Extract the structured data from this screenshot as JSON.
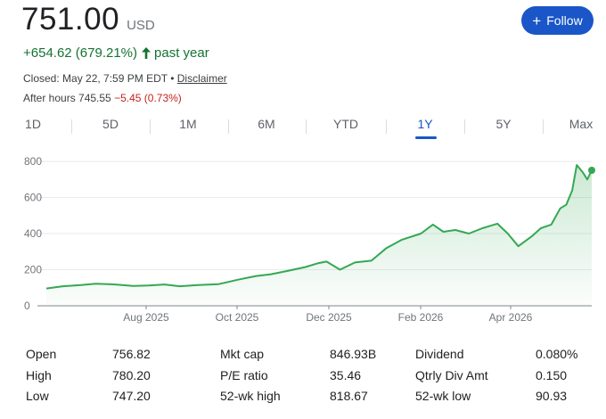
{
  "quote": {
    "price": "751.00",
    "currency": "USD",
    "change": "+654.62 (679.21%)",
    "change_period": "past year",
    "closed_text": "Closed: May 22, 7:59 PM EDT",
    "separator": "•",
    "disclaimer": "Disclaimer",
    "after_hours_label": "After hours 745.55",
    "after_hours_change": "−5.45 (0.73%)"
  },
  "follow_button": {
    "label": "Follow",
    "icon": "plus-icon"
  },
  "tabs": [
    {
      "label": "1D",
      "active": false
    },
    {
      "label": "5D",
      "active": false
    },
    {
      "label": "1M",
      "active": false
    },
    {
      "label": "6M",
      "active": false
    },
    {
      "label": "YTD",
      "active": false
    },
    {
      "label": "1Y",
      "active": true
    },
    {
      "label": "5Y",
      "active": false
    },
    {
      "label": "Max",
      "active": false
    }
  ],
  "colors": {
    "accent": "#1a56c7",
    "positive": "#137333",
    "negative": "#c5221f",
    "line": "#34a853"
  },
  "chart_data": {
    "type": "area",
    "y_ticks": [
      0,
      200,
      400,
      600,
      800
    ],
    "y_tick_labels": [
      "0",
      "200",
      "400",
      "600",
      "800"
    ],
    "ylim": [
      0,
      830
    ],
    "x_tick_labels": [
      "Aug 2025",
      "Oct 2025",
      "Dec 2025",
      "Feb 2026",
      "Apr 2026"
    ],
    "xlim": [
      "2025-05-23",
      "2026-05-22"
    ],
    "grid": true,
    "series": [
      {
        "x": [
          "2025-05-23",
          "2025-06-03",
          "2025-06-15",
          "2025-06-25",
          "2025-07-08",
          "2025-07-20",
          "2025-07-30",
          "2025-08-10",
          "2025-08-20",
          "2025-09-01",
          "2025-09-15",
          "2025-09-28",
          "2025-10-10",
          "2025-10-20",
          "2025-11-01",
          "2025-11-12",
          "2025-11-20",
          "2025-11-26",
          "2025-12-05",
          "2025-12-15",
          "2025-12-26",
          "2026-01-05",
          "2026-01-15",
          "2026-01-28",
          "2026-02-05",
          "2026-02-12",
          "2026-02-20",
          "2026-03-01",
          "2026-03-10",
          "2026-03-20",
          "2026-03-27",
          "2026-04-03",
          "2026-04-12",
          "2026-04-18",
          "2026-04-25",
          "2026-05-01",
          "2026-05-05",
          "2026-05-09",
          "2026-05-12",
          "2026-05-16",
          "2026-05-19",
          "2026-05-22"
        ],
        "values": [
          96,
          108,
          115,
          122,
          118,
          110,
          112,
          118,
          108,
          115,
          120,
          145,
          165,
          175,
          195,
          215,
          235,
          245,
          200,
          240,
          250,
          320,
          365,
          400,
          450,
          410,
          420,
          400,
          430,
          455,
          400,
          330,
          385,
          430,
          450,
          540,
          560,
          640,
          780,
          740,
          700,
          751
        ]
      }
    ]
  },
  "stats": [
    {
      "label": "Open",
      "value": "756.82"
    },
    {
      "label": "High",
      "value": "780.20"
    },
    {
      "label": "Low",
      "value": "747.20"
    },
    {
      "label": "Mkt cap",
      "value": "846.93B"
    },
    {
      "label": "P/E ratio",
      "value": "35.46"
    },
    {
      "label": "52-wk high",
      "value": "818.67"
    },
    {
      "label": "Dividend",
      "value": "0.080%"
    },
    {
      "label": "Qtrly Div Amt",
      "value": "0.150"
    },
    {
      "label": "52-wk low",
      "value": "90.93"
    }
  ]
}
